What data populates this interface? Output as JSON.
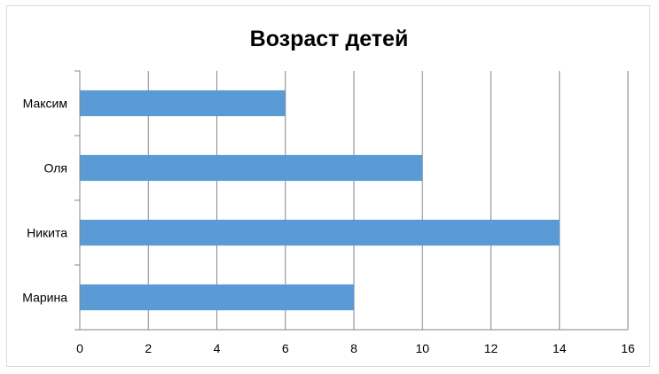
{
  "chart_data": {
    "type": "bar",
    "orientation": "horizontal",
    "title": "Возраст детей",
    "categories": [
      "Марина",
      "Никита",
      "Оля",
      "Максим"
    ],
    "values": [
      8,
      14,
      10,
      6
    ],
    "xlim": [
      0,
      16
    ],
    "xticks": [
      0,
      2,
      4,
      6,
      8,
      10,
      12,
      14,
      16
    ],
    "xlabel": "",
    "ylabel": "",
    "grid": "vertical",
    "legend": "none",
    "bar_color": "#5b9bd5",
    "grid_color": "#868686",
    "axis_color": "#868686"
  }
}
